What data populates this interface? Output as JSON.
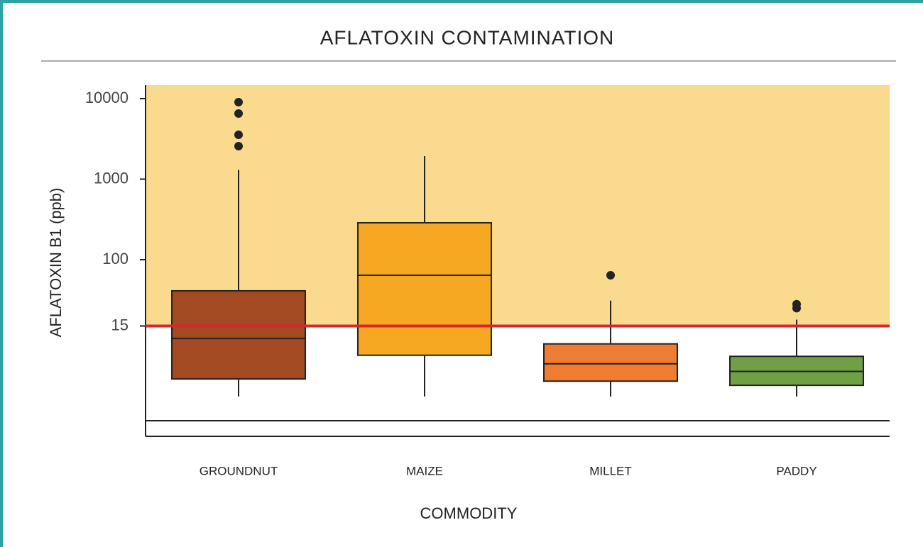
{
  "chart_data": {
    "type": "box",
    "title": "AFLATOXIN CONTAMINATION",
    "x_label": "COMMODITY",
    "y_label": "AFLATOXIN B1 (ppb)",
    "yscale": "log",
    "ylim": [
      0.64,
      14700
    ],
    "yticks": [
      15,
      100,
      1000,
      10000
    ],
    "baseline": 1,
    "threshold": {
      "value": 15,
      "color": "#d8262c",
      "shade_color": "#f9da8f"
    },
    "categories": [
      "GROUNDNUT",
      "MAIZE",
      "MILLET",
      "PADDY"
    ],
    "colors": [
      "#a34a23",
      "#f6a823",
      "#ef7c33",
      "#6fa144"
    ],
    "boxes": [
      {
        "min": 2,
        "q1": 3.3,
        "median": 10.5,
        "q3": 41,
        "max": 1300,
        "outliers": [
          9040,
          6530,
          3550,
          2570
        ]
      },
      {
        "min": 2,
        "q1": 6.5,
        "median": 64,
        "q3": 287,
        "max": 1930,
        "outliers": []
      },
      {
        "min": 2,
        "q1": 3.1,
        "median": 5.1,
        "q3": 9,
        "max": 31,
        "outliers": [
          64
        ]
      },
      {
        "min": 2,
        "q1": 2.75,
        "median": 4.1,
        "q3": 6.3,
        "max": 18,
        "outliers": [
          28,
          25
        ]
      }
    ]
  }
}
